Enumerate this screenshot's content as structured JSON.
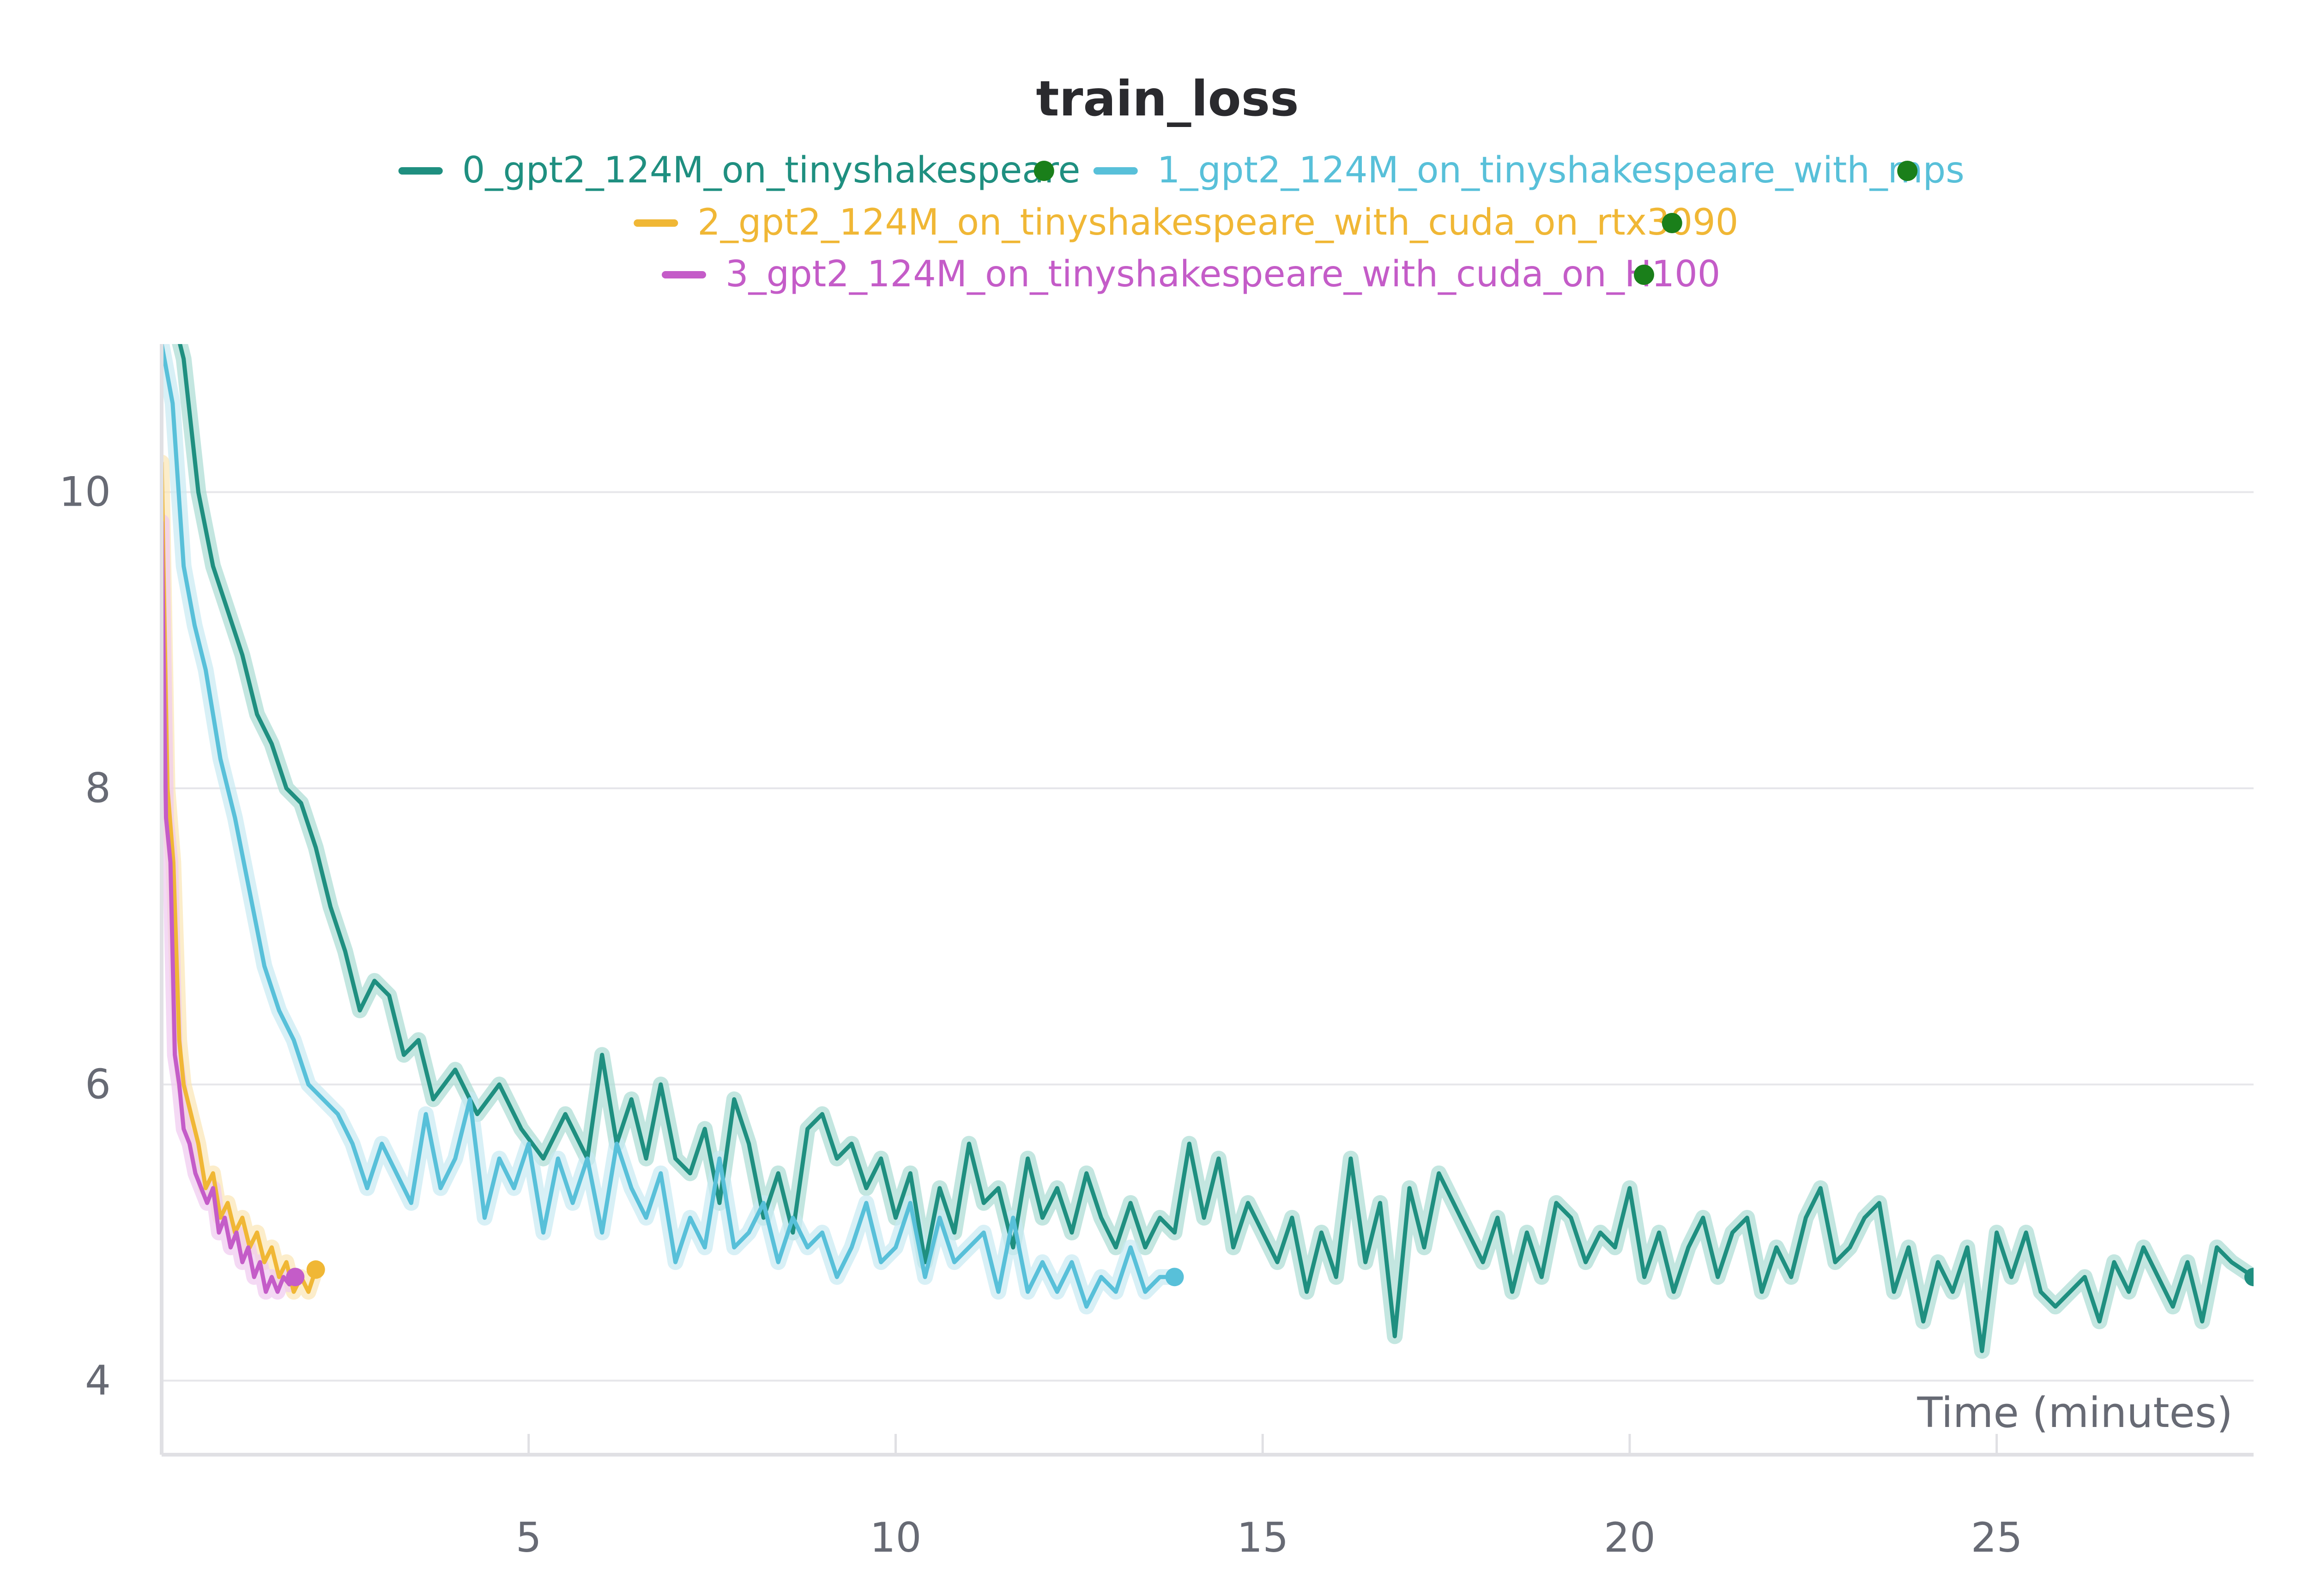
{
  "chart_data": {
    "type": "line",
    "title": "train_loss",
    "xlabel": "Time (minutes)",
    "ylabel": "",
    "xlim": [
      0,
      28.5
    ],
    "ylim": [
      3.5,
      11
    ],
    "xticks": [
      5,
      10,
      15,
      20,
      25
    ],
    "yticks": [
      4,
      6,
      8,
      10
    ],
    "grid": "horizontal",
    "legend_position": "top-center",
    "status_dot_color": "#1a7f1a",
    "series": [
      {
        "name": "0_gpt2_124M_on_tinyshakespeare",
        "color": "#1f8f80",
        "band_color": "#a9dbd3",
        "x": [
          0.15,
          0.3,
          0.5,
          0.7,
          0.9,
          1.1,
          1.3,
          1.5,
          1.7,
          1.9,
          2.1,
          2.3,
          2.5,
          2.7,
          2.9,
          3.1,
          3.3,
          3.5,
          3.7,
          4.0,
          4.3,
          4.6,
          4.9,
          5.2,
          5.5,
          5.8,
          6.0,
          6.2,
          6.4,
          6.6,
          6.8,
          7.0,
          7.2,
          7.4,
          7.6,
          7.8,
          8.0,
          8.2,
          8.4,
          8.6,
          8.8,
          9.0,
          9.2,
          9.4,
          9.6,
          9.8,
          10.0,
          10.2,
          10.4,
          10.6,
          10.8,
          11.0,
          11.2,
          11.4,
          11.6,
          11.8,
          12.0,
          12.2,
          12.4,
          12.6,
          12.8,
          13.0,
          13.2,
          13.4,
          13.6,
          13.8,
          14.0,
          14.2,
          14.4,
          14.6,
          14.8,
          15.0,
          15.2,
          15.4,
          15.6,
          15.8,
          16.0,
          16.2,
          16.4,
          16.6,
          16.8,
          17.0,
          17.2,
          17.4,
          17.6,
          17.8,
          18.0,
          18.2,
          18.4,
          18.6,
          18.8,
          19.0,
          19.2,
          19.4,
          19.6,
          19.8,
          20.0,
          20.2,
          20.4,
          20.6,
          20.8,
          21.0,
          21.2,
          21.4,
          21.6,
          21.8,
          22.0,
          22.2,
          22.4,
          22.6,
          22.8,
          23.0,
          23.2,
          23.4,
          23.6,
          23.8,
          24.0,
          24.2,
          24.4,
          24.6,
          24.8,
          25.0,
          25.2,
          25.4,
          25.6,
          25.8,
          26.0,
          26.2,
          26.4,
          26.6,
          26.8,
          27.0,
          27.2,
          27.4,
          27.6,
          27.8,
          28.0,
          28.2,
          28.5
        ],
        "y": [
          11.2,
          10.9,
          10.0,
          9.5,
          9.2,
          8.9,
          8.5,
          8.3,
          8.0,
          7.9,
          7.6,
          7.2,
          6.9,
          6.5,
          6.7,
          6.6,
          6.2,
          6.3,
          5.9,
          6.1,
          5.8,
          6.0,
          5.7,
          5.5,
          5.8,
          5.5,
          6.2,
          5.6,
          5.9,
          5.5,
          6.0,
          5.5,
          5.4,
          5.7,
          5.2,
          5.9,
          5.6,
          5.1,
          5.4,
          5.0,
          5.7,
          5.8,
          5.5,
          5.6,
          5.3,
          5.5,
          5.1,
          5.4,
          4.8,
          5.3,
          5.0,
          5.6,
          5.2,
          5.3,
          4.9,
          5.5,
          5.1,
          5.3,
          5.0,
          5.4,
          5.1,
          4.9,
          5.2,
          4.9,
          5.1,
          5.0,
          5.6,
          5.1,
          5.5,
          4.9,
          5.2,
          5.0,
          4.8,
          5.1,
          4.6,
          5.0,
          4.7,
          5.5,
          4.8,
          5.2,
          4.3,
          5.3,
          4.9,
          5.4,
          5.2,
          5.0,
          4.8,
          5.1,
          4.6,
          5.0,
          4.7,
          5.2,
          5.1,
          4.8,
          5.0,
          4.9,
          5.3,
          4.7,
          5.0,
          4.6,
          4.9,
          5.1,
          4.7,
          5.0,
          5.1,
          4.6,
          4.9,
          4.7,
          5.1,
          5.3,
          4.8,
          4.9,
          5.1,
          5.2,
          4.6,
          4.9,
          4.4,
          4.8,
          4.6,
          4.9,
          4.2,
          5.0,
          4.7,
          5.0,
          4.6,
          4.5,
          4.6,
          4.7,
          4.4,
          4.8,
          4.6,
          4.9,
          4.7,
          4.5,
          4.8,
          4.4,
          4.9,
          4.8,
          4.7
        ]
      },
      {
        "name": "1_gpt2_124M_on_tinyshakespeare_with_mps",
        "color": "#58c0d9",
        "band_color": "#c7e9f2",
        "x": [
          0.0,
          0.15,
          0.3,
          0.45,
          0.6,
          0.8,
          1.0,
          1.2,
          1.4,
          1.6,
          1.8,
          2.0,
          2.2,
          2.4,
          2.6,
          2.8,
          3.0,
          3.2,
          3.4,
          3.6,
          3.8,
          4.0,
          4.2,
          4.4,
          4.6,
          4.8,
          5.0,
          5.2,
          5.4,
          5.6,
          5.8,
          6.0,
          6.2,
          6.4,
          6.6,
          6.8,
          7.0,
          7.2,
          7.4,
          7.6,
          7.8,
          8.0,
          8.2,
          8.4,
          8.6,
          8.8,
          9.0,
          9.2,
          9.4,
          9.6,
          9.8,
          10.0,
          10.2,
          10.4,
          10.6,
          10.8,
          11.0,
          11.2,
          11.4,
          11.6,
          11.8,
          12.0,
          12.2,
          12.4,
          12.6,
          12.8,
          13.0,
          13.2,
          13.4,
          13.6,
          13.8
        ],
        "y": [
          11.0,
          10.6,
          9.5,
          9.1,
          8.8,
          8.2,
          7.8,
          7.3,
          6.8,
          6.5,
          6.3,
          6.0,
          5.9,
          5.8,
          5.6,
          5.3,
          5.6,
          5.4,
          5.2,
          5.8,
          5.3,
          5.5,
          5.9,
          5.1,
          5.5,
          5.3,
          5.6,
          5.0,
          5.5,
          5.2,
          5.5,
          5.0,
          5.6,
          5.3,
          5.1,
          5.4,
          4.8,
          5.1,
          4.9,
          5.5,
          4.9,
          5.0,
          5.2,
          4.8,
          5.1,
          4.9,
          5.0,
          4.7,
          4.9,
          5.2,
          4.8,
          4.9,
          5.2,
          4.7,
          5.1,
          4.8,
          4.9,
          5.0,
          4.6,
          5.1,
          4.6,
          4.8,
          4.6,
          4.8,
          4.5,
          4.7,
          4.6,
          4.9,
          4.6,
          4.7,
          4.7
        ]
      },
      {
        "name": "2_gpt2_124M_on_tinyshakespeare_with_cuda_on_rtx3090",
        "color": "#f0b735",
        "band_color": "#fbe6b4",
        "x": [
          0.0,
          0.08,
          0.16,
          0.24,
          0.3,
          0.4,
          0.5,
          0.6,
          0.7,
          0.8,
          0.9,
          1.0,
          1.1,
          1.2,
          1.3,
          1.4,
          1.5,
          1.6,
          1.7,
          1.8,
          1.9,
          2.0,
          2.1
        ],
        "y": [
          10.2,
          8.0,
          7.5,
          6.3,
          6.0,
          5.8,
          5.6,
          5.3,
          5.4,
          5.1,
          5.2,
          5.0,
          5.1,
          4.9,
          5.0,
          4.8,
          4.9,
          4.7,
          4.8,
          4.6,
          4.7,
          4.6,
          4.75
        ]
      },
      {
        "name": "3_gpt2_124M_on_tinyshakespeare_with_cuda_on_H100",
        "color": "#c45cc8",
        "band_color": "#efc9f0",
        "x": [
          0.0,
          0.06,
          0.12,
          0.18,
          0.24,
          0.3,
          0.38,
          0.46,
          0.54,
          0.62,
          0.7,
          0.78,
          0.86,
          0.94,
          1.02,
          1.1,
          1.18,
          1.26,
          1.34,
          1.42,
          1.5,
          1.58,
          1.66,
          1.74,
          1.82
        ],
        "y": [
          9.8,
          7.8,
          7.5,
          6.2,
          6.0,
          5.7,
          5.6,
          5.4,
          5.3,
          5.2,
          5.3,
          5.0,
          5.1,
          4.9,
          5.0,
          4.8,
          4.9,
          4.7,
          4.8,
          4.6,
          4.7,
          4.6,
          4.7,
          4.65,
          4.7
        ]
      }
    ]
  }
}
